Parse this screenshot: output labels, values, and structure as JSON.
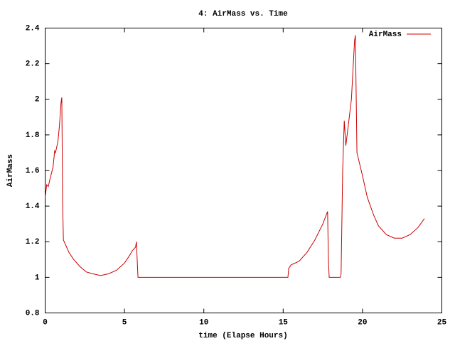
{
  "chart_data": {
    "type": "line",
    "title": "4: AirMass vs. Time",
    "x_label": "time (Elapse Hours)",
    "y_label": "AirMass",
    "legend": "top-right",
    "xlim": [
      0,
      25
    ],
    "xticks": [
      0,
      5,
      10,
      15,
      20,
      25
    ],
    "ylim": [
      0.8,
      2.4
    ],
    "yticks": [
      0.8,
      1,
      1.2,
      1.4,
      1.6,
      1.8,
      2,
      2.2,
      2.4
    ],
    "series": [
      {
        "name": "AirMass",
        "color": "#cc0000",
        "x": [
          0,
          0.1,
          0.2,
          0.3,
          0.5,
          0.6,
          0.65,
          0.8,
          0.9,
          1.0,
          1.05,
          1.1,
          1.15,
          1.3,
          1.5,
          1.8,
          2.2,
          2.6,
          3.0,
          3.5,
          4.0,
          4.5,
          5.0,
          5.3,
          5.5,
          5.7,
          5.75,
          5.85,
          15.3,
          15.35,
          15.5,
          16.0,
          16.5,
          17.0,
          17.5,
          17.8,
          17.85,
          17.9,
          18.6,
          18.65,
          18.75,
          18.85,
          18.95,
          19.1,
          19.3,
          19.5,
          19.55,
          19.65,
          20.0,
          20.3,
          20.7,
          21.0,
          21.5,
          22.0,
          22.5,
          23.0,
          23.5,
          23.9
        ],
        "values": [
          1.45,
          1.52,
          1.51,
          1.55,
          1.62,
          1.71,
          1.7,
          1.76,
          1.85,
          1.98,
          2.01,
          1.43,
          1.21,
          1.18,
          1.14,
          1.1,
          1.06,
          1.03,
          1.02,
          1.01,
          1.02,
          1.04,
          1.08,
          1.12,
          1.15,
          1.17,
          1.2,
          1.0,
          1.0,
          1.05,
          1.07,
          1.09,
          1.14,
          1.21,
          1.3,
          1.37,
          1.1,
          1.0,
          1.0,
          1.02,
          1.6,
          1.88,
          1.74,
          1.85,
          2.0,
          2.33,
          2.36,
          1.7,
          1.57,
          1.45,
          1.35,
          1.29,
          1.24,
          1.22,
          1.22,
          1.24,
          1.28,
          1.33
        ]
      }
    ]
  }
}
